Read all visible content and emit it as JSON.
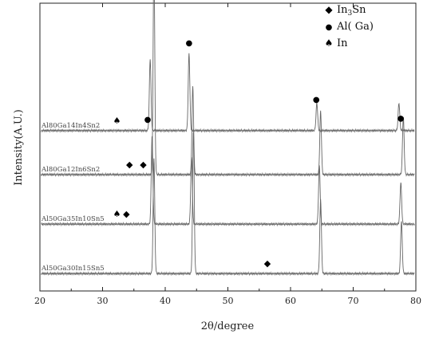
{
  "chart_data": {
    "type": "line",
    "xlabel": "2θ/degree",
    "ylabel": "Intensity(A.U.)",
    "xlim": [
      20,
      80
    ],
    "xticks": [
      20,
      30,
      40,
      50,
      60,
      70,
      80
    ],
    "legend": {
      "placement": "top-right",
      "entries": [
        {
          "marker": "diamond",
          "label": "In",
          "sub": "3",
          "label_tail": "Sn"
        },
        {
          "marker": "circle",
          "label": "Al( Ga)",
          "sub": "",
          "label_tail": ""
        },
        {
          "marker": "spade",
          "label": "In",
          "sub": "",
          "label_tail": ""
        }
      ]
    },
    "series": [
      {
        "name": "Al80Ga14In4Sn2",
        "baseline": 0.56,
        "peaks": [
          {
            "x": 37.6,
            "h": 0.26
          },
          {
            "x": 43.8,
            "h": 0.28
          },
          {
            "x": 64.2,
            "h": 0.1
          },
          {
            "x": 77.3,
            "h": 0.1
          }
        ],
        "markers": [
          {
            "x": 32.3,
            "symbol": "spade"
          },
          {
            "x": 37.2,
            "symbol": "circle"
          },
          {
            "x": 43.8,
            "symbol": "circle"
          },
          {
            "x": 64.1,
            "symbol": "circle"
          },
          {
            "x": 77.6,
            "symbol": "circle"
          }
        ]
      },
      {
        "name": "Al80Ga12In6Sn2",
        "baseline": 0.4,
        "peaks": [
          {
            "x": 38.2,
            "h": 0.78
          },
          {
            "x": 44.4,
            "h": 0.32
          },
          {
            "x": 64.8,
            "h": 0.23
          },
          {
            "x": 78.0,
            "h": 0.21
          }
        ],
        "markers": [
          {
            "x": 34.3,
            "symbol": "diamond"
          },
          {
            "x": 36.5,
            "symbol": "diamond"
          }
        ]
      },
      {
        "name": "Al50Ga35In10Sn5",
        "baseline": 0.22,
        "peaks": [
          {
            "x": 37.9,
            "h": 0.32
          },
          {
            "x": 44.2,
            "h": 0.24
          },
          {
            "x": 64.6,
            "h": 0.21
          },
          {
            "x": 77.6,
            "h": 0.15
          }
        ],
        "markers": [
          {
            "x": 32.3,
            "symbol": "spade"
          },
          {
            "x": 33.8,
            "symbol": "diamond"
          }
        ]
      },
      {
        "name": "Al50Ga30In15Sn5",
        "baseline": 0.04,
        "peaks": [
          {
            "x": 38.2,
            "h": 0.42
          },
          {
            "x": 44.5,
            "h": 0.52
          },
          {
            "x": 64.8,
            "h": 0.27
          },
          {
            "x": 77.7,
            "h": 0.19
          }
        ],
        "markers": [
          {
            "x": 56.3,
            "symbol": "diamond"
          }
        ]
      }
    ]
  }
}
